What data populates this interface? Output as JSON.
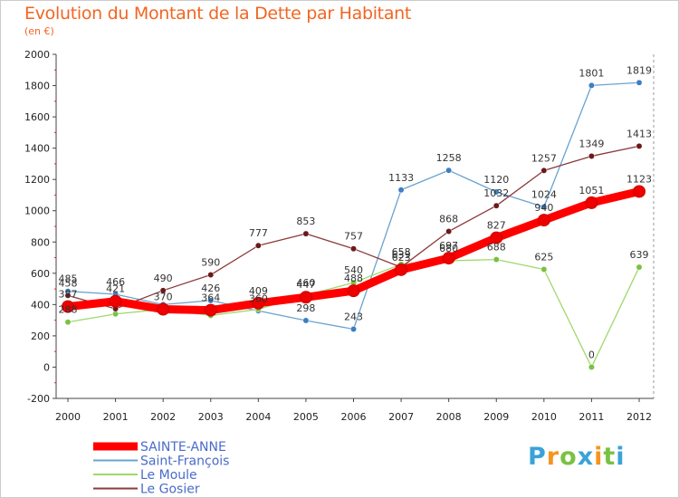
{
  "title": "Evolution du Montant de la Dette par Habitant",
  "subtitle": "(en €)",
  "logo": {
    "text": "Proxiti",
    "letter_colors": [
      "#3aa3d8",
      "#f7941d",
      "#7ac143",
      "#3aa3d8",
      "#f7941d",
      "#7ac143",
      "#3aa3d8"
    ]
  },
  "chart_data": {
    "type": "line",
    "x": [
      2000,
      2001,
      2002,
      2003,
      2004,
      2005,
      2006,
      2007,
      2008,
      2009,
      2010,
      2011,
      2012
    ],
    "ylim": [
      -200,
      2000
    ],
    "yticks": [
      -200,
      0,
      200,
      400,
      600,
      800,
      1000,
      1200,
      1400,
      1600,
      1800,
      2000
    ],
    "grid": false,
    "legend_position": "bottom-left",
    "series": [
      {
        "name": "Saint-François",
        "color": "#6aa3d0",
        "point_color": "#3d7fc1",
        "values": [
          485,
          466,
          400,
          426,
          360,
          298,
          243,
          1133,
          1258,
          1120,
          1024,
          1801,
          1819
        ],
        "labels": [
          "485",
          "466",
          "",
          "426",
          "360",
          "298",
          "243",
          "1133",
          "1258",
          "1120",
          "1024",
          "1801",
          "1819"
        ]
      },
      {
        "name": "Le Moule",
        "color": "#9ed96a",
        "point_color": "#7ac143",
        "values": [
          288,
          340,
          370,
          330,
          370,
          460,
          540,
          658,
          680,
          688,
          625,
          0,
          639
        ],
        "labels": [
          "288",
          "",
          "",
          "",
          "",
          "460",
          "540",
          "658",
          "680",
          "688",
          "625",
          "0",
          "639"
        ]
      },
      {
        "name": "Le Gosier",
        "color": "#8b3a3a",
        "point_color": "#6b1a1a",
        "values": [
          458,
          373,
          490,
          590,
          777,
          853,
          757,
          639,
          868,
          1032,
          1257,
          1349,
          1413
        ],
        "labels": [
          "458",
          "",
          "490",
          "590",
          "777",
          "853",
          "757",
          "639",
          "868",
          "1032",
          "1257",
          "1349",
          "1413"
        ]
      },
      {
        "name": "SAINTE-ANNE",
        "color": "#ff0000",
        "point_color": "#ee0000",
        "values": [
          387,
          421,
          370,
          364,
          409,
          447,
          488,
          623,
          697,
          827,
          940,
          1051,
          1123
        ],
        "labels": [
          "387",
          "421",
          "370",
          "364",
          "409",
          "447",
          "488",
          "623",
          "697",
          "827",
          "940",
          "1051",
          "1123"
        ]
      }
    ],
    "legend_order": [
      "SAINTE-ANNE",
      "Saint-François",
      "Le Moule",
      "Le Gosier"
    ]
  }
}
